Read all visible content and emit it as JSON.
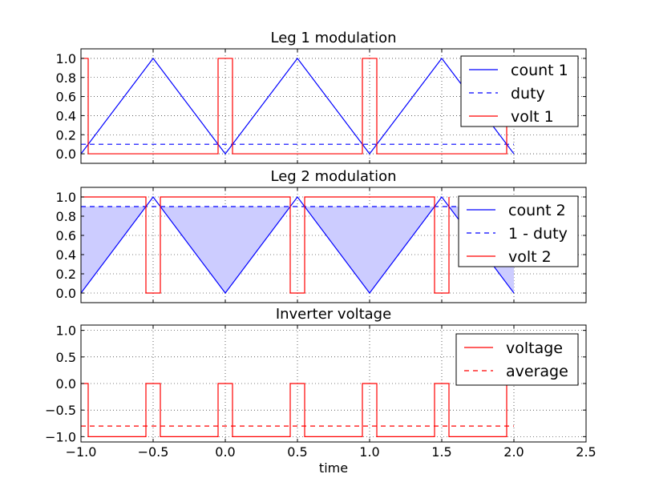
{
  "chart_data": [
    {
      "type": "line",
      "title": "Leg 1 modulation",
      "xlim": [
        -1.0,
        2.5
      ],
      "ylim": [
        -0.1,
        1.1
      ],
      "yticks": [
        "1.0",
        "0.8",
        "0.6",
        "0.4",
        "0.2",
        "0.0"
      ],
      "grid": true,
      "legend": "top-right",
      "series": [
        {
          "name": "count 1",
          "style": "solid",
          "color": "#0000ff",
          "x": [
            -1.0,
            -0.5,
            0.0,
            0.5,
            1.0,
            1.5,
            2.0
          ],
          "y": [
            0.0,
            1.0,
            0.0,
            1.0,
            0.0,
            1.0,
            0.0
          ]
        },
        {
          "name": "duty",
          "style": "dashed",
          "color": "#0000ff",
          "x": [
            -1.0,
            2.0
          ],
          "y": [
            0.1,
            0.1
          ]
        },
        {
          "name": "volt 1",
          "style": "solid",
          "color": "#ff0000",
          "step": true,
          "x": [
            -1.0,
            -0.95,
            -0.95,
            -0.05,
            -0.05,
            0.05,
            0.05,
            0.95,
            0.95,
            1.05,
            1.05,
            1.95,
            1.95
          ],
          "y": [
            1.0,
            1.0,
            0.0,
            0.0,
            1.0,
            1.0,
            0.0,
            0.0,
            1.0,
            1.0,
            0.0,
            0.0,
            1.0
          ]
        }
      ]
    },
    {
      "type": "line",
      "title": "Leg 2 modulation",
      "xlim": [
        -1.0,
        2.5
      ],
      "ylim": [
        -0.1,
        1.1
      ],
      "yticks": [
        "1.0",
        "0.8",
        "0.6",
        "0.4",
        "0.2",
        "0.0"
      ],
      "grid": true,
      "legend": "top-right",
      "fill": {
        "between": "1 - duty and count 2",
        "where": "count 2 below 1 - duty",
        "color": "#ccccff"
      },
      "series": [
        {
          "name": "count 2",
          "style": "solid",
          "color": "#0000ff",
          "x": [
            -1.0,
            -0.5,
            0.0,
            0.5,
            1.0,
            1.5,
            2.0
          ],
          "y": [
            0.0,
            1.0,
            0.0,
            1.0,
            0.0,
            1.0,
            0.0
          ]
        },
        {
          "name": "1 - duty",
          "style": "dashed",
          "color": "#0000ff",
          "x": [
            -1.0,
            2.0
          ],
          "y": [
            0.9,
            0.9
          ]
        },
        {
          "name": "volt 2",
          "style": "solid",
          "color": "#ff0000",
          "step": true,
          "x": [
            -1.0,
            -0.55,
            -0.55,
            -0.45,
            -0.45,
            0.45,
            0.45,
            0.55,
            0.55,
            1.45,
            1.45,
            1.55,
            1.55
          ],
          "y": [
            1.0,
            1.0,
            0.0,
            0.0,
            1.0,
            1.0,
            0.0,
            0.0,
            1.0,
            1.0,
            0.0,
            0.0,
            1.0
          ]
        }
      ]
    },
    {
      "type": "line",
      "title": "Inverter voltage",
      "xlabel": "time",
      "xlim": [
        -1.0,
        2.5
      ],
      "ylim": [
        -1.1,
        1.1
      ],
      "xticks": [
        "−1.0",
        "−0.5",
        "0.0",
        "0.5",
        "1.0",
        "1.5",
        "2.0",
        "2.5"
      ],
      "yticks": [
        "1.0",
        "0.5",
        "0.0",
        "−0.5",
        "−1.0"
      ],
      "grid": true,
      "legend": "top-right",
      "series": [
        {
          "name": "voltage",
          "style": "solid",
          "color": "#ff0000",
          "step": true,
          "x": [
            -1.0,
            -0.95,
            -0.95,
            -0.55,
            -0.55,
            -0.45,
            -0.45,
            -0.05,
            -0.05,
            0.05,
            0.05,
            0.45,
            0.45,
            0.55,
            0.55,
            0.95,
            0.95,
            1.05,
            1.05,
            1.45,
            1.45,
            1.55,
            1.55,
            1.95,
            1.95
          ],
          "y": [
            0.0,
            0.0,
            -1.0,
            -1.0,
            0.0,
            0.0,
            -1.0,
            -1.0,
            0.0,
            0.0,
            -1.0,
            -1.0,
            0.0,
            0.0,
            -1.0,
            -1.0,
            0.0,
            0.0,
            -1.0,
            -1.0,
            0.0,
            0.0,
            -1.0,
            -1.0,
            0.0
          ]
        },
        {
          "name": "average",
          "style": "dashed",
          "color": "#ff0000",
          "x": [
            -1.0,
            2.0
          ],
          "y": [
            -0.8,
            -0.8
          ]
        }
      ]
    }
  ]
}
